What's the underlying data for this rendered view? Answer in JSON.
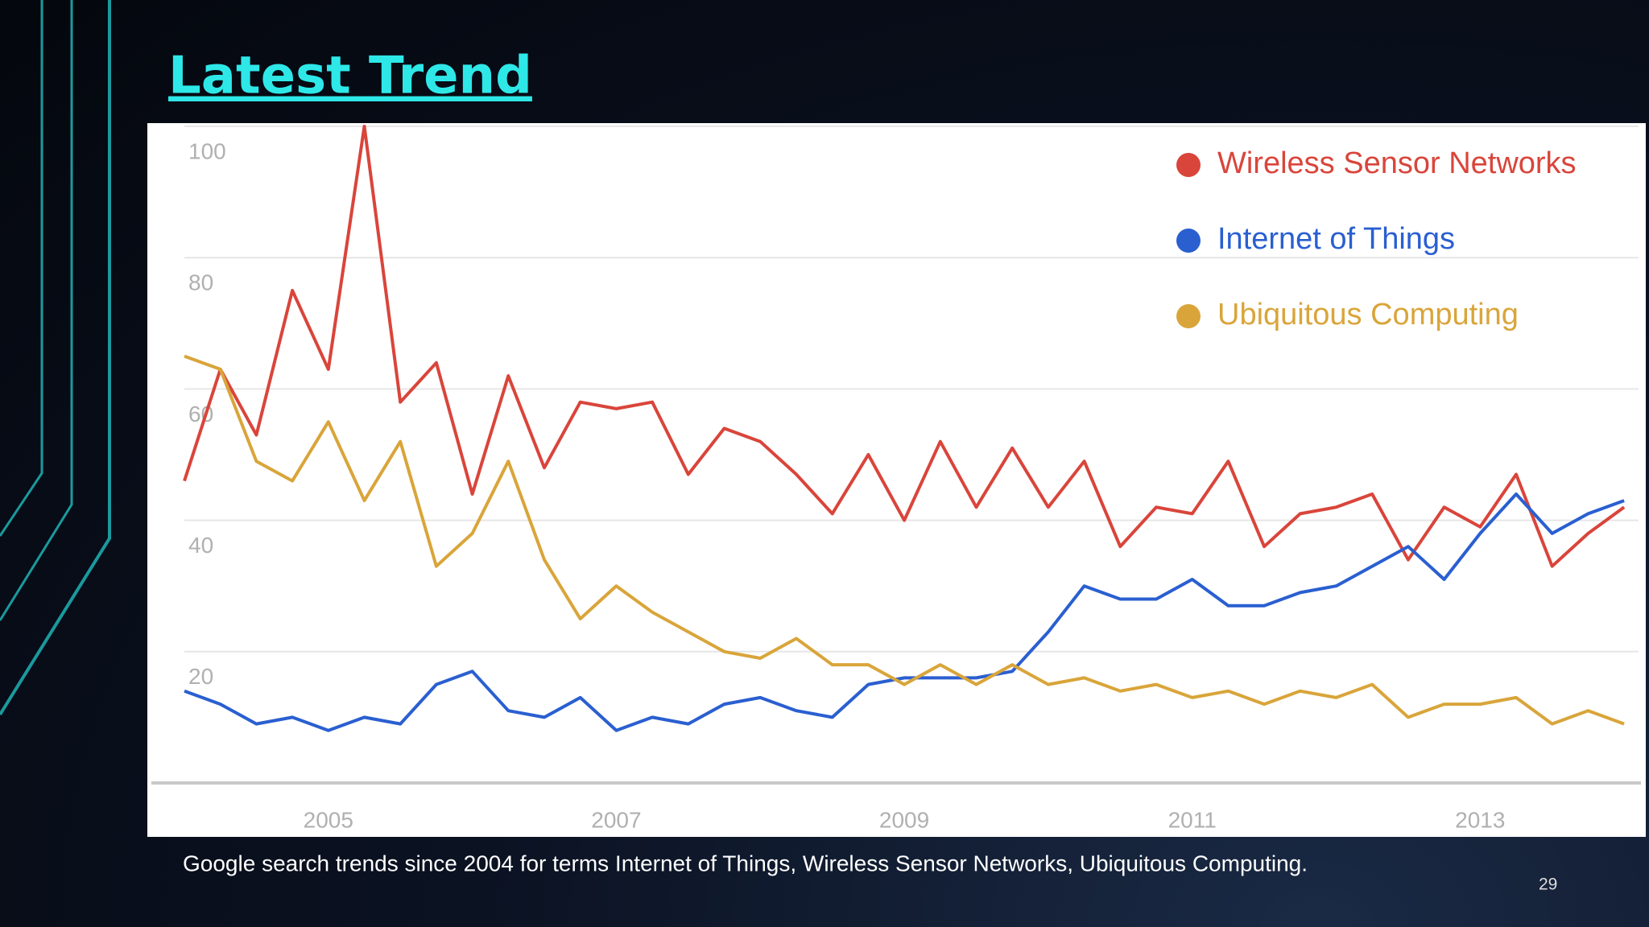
{
  "slide": {
    "title": "Latest Trend",
    "caption": "Google search trends since 2004 for terms Internet of Things, Wireless Sensor Networks, Ubiquitous Computing.",
    "page_number": "29"
  },
  "chart_data": {
    "type": "line",
    "x": [
      2004.0,
      2004.25,
      2004.5,
      2004.75,
      2005.0,
      2005.25,
      2005.5,
      2005.75,
      2006.0,
      2006.25,
      2006.5,
      2006.75,
      2007.0,
      2007.25,
      2007.5,
      2007.75,
      2008.0,
      2008.25,
      2008.5,
      2008.75,
      2009.0,
      2009.25,
      2009.5,
      2009.75,
      2010.0,
      2010.25,
      2010.5,
      2010.75,
      2011.0,
      2011.25,
      2011.5,
      2011.75,
      2012.0,
      2012.25,
      2012.5,
      2012.75,
      2013.0,
      2013.25,
      2013.5,
      2013.75,
      2014.0
    ],
    "series": [
      {
        "name": "Wireless Sensor Networks",
        "color": "#d9453b",
        "values": [
          46,
          63,
          53,
          75,
          63,
          100,
          58,
          64,
          44,
          62,
          48,
          58,
          57,
          58,
          47,
          54,
          52,
          47,
          41,
          50,
          40,
          52,
          42,
          51,
          42,
          49,
          36,
          42,
          41,
          49,
          36,
          41,
          42,
          44,
          34,
          42,
          39,
          47,
          33,
          38,
          42
        ]
      },
      {
        "name": "Internet of Things",
        "color": "#2a5fd0",
        "values": [
          14,
          12,
          9,
          10,
          8,
          10,
          9,
          15,
          17,
          11,
          10,
          13,
          8,
          10,
          9,
          12,
          13,
          11,
          10,
          15,
          16,
          16,
          16,
          17,
          23,
          30,
          28,
          28,
          31,
          27,
          27,
          29,
          30,
          33,
          36,
          31,
          38,
          44,
          38,
          41,
          43
        ]
      },
      {
        "name": "Ubiquitous Computing",
        "color": "#d9a53a",
        "values": [
          65,
          63,
          49,
          46,
          55,
          43,
          52,
          33,
          38,
          49,
          34,
          25,
          30,
          26,
          23,
          20,
          19,
          22,
          18,
          18,
          15,
          18,
          15,
          18,
          15,
          16,
          14,
          15,
          13,
          14,
          12,
          14,
          13,
          15,
          10,
          12,
          12,
          13,
          9,
          11,
          9
        ]
      }
    ],
    "xlim": [
      2004,
      2014.1
    ],
    "xticks": [
      2005,
      2007,
      2009,
      2011,
      2013
    ],
    "ylim": [
      0,
      100
    ],
    "yticks": [
      20,
      40,
      60,
      80,
      100
    ],
    "grid": true,
    "legend": "upper right"
  }
}
